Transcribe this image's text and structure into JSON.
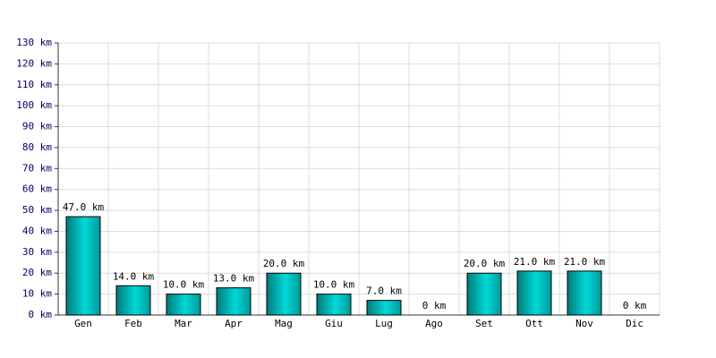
{
  "chart_data": {
    "type": "bar",
    "categories": [
      "Gen",
      "Feb",
      "Mar",
      "Apr",
      "Mag",
      "Giu",
      "Lug",
      "Ago",
      "Set",
      "Ott",
      "Nov",
      "Dic"
    ],
    "values": [
      47,
      14,
      10,
      13,
      20,
      10,
      7,
      0,
      20,
      21,
      21,
      0
    ],
    "value_labels": [
      "47.0 km",
      "14.0 km",
      "10.0 km",
      "13.0 km",
      "20.0 km",
      "10.0 km",
      "7.0 km",
      "0 km",
      "20.0 km",
      "21.0 km",
      "21.0 km",
      "0 km"
    ],
    "color": "#00d8d8",
    "ylim": [
      0,
      130
    ],
    "yticks": [
      {
        "value": 0,
        "label": "0 km"
      },
      {
        "value": 10,
        "label": "10 km"
      },
      {
        "value": 20,
        "label": "20 km"
      },
      {
        "value": 30,
        "label": "30 km"
      },
      {
        "value": 40,
        "label": "40 km"
      },
      {
        "value": 50,
        "label": "50 km"
      },
      {
        "value": 60,
        "label": "60 km"
      },
      {
        "value": 70,
        "label": "70 km"
      },
      {
        "value": 80,
        "label": "80 km"
      },
      {
        "value": 90,
        "label": "90 km"
      },
      {
        "value": 100,
        "label": "100 km"
      },
      {
        "value": 110,
        "label": "110 km"
      },
      {
        "value": 120,
        "label": "120 km"
      },
      {
        "value": 130,
        "label": "130 km"
      }
    ],
    "grid": true
  }
}
